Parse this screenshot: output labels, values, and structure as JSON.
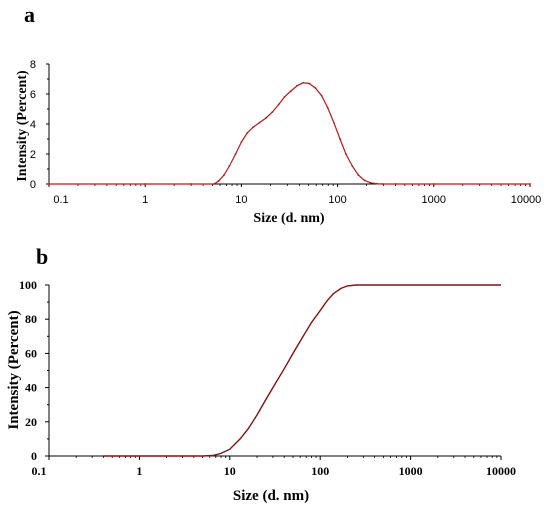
{
  "chart_data": [
    {
      "panel_label": "a",
      "type": "line",
      "xscale": "log",
      "xlim": [
        0.1,
        10000
      ],
      "ylim": [
        0,
        8
      ],
      "xlabel": "Size (d. nm)",
      "ylabel": "Intensity (Percent)",
      "x_ticks": [
        "0.1",
        "1",
        "10",
        "100",
        "1000",
        "10000"
      ],
      "y_ticks": [
        "0",
        "2",
        "4",
        "6",
        "8"
      ],
      "series": [
        {
          "color": "#b01c1c",
          "x": [
            0.1,
            1,
            3,
            5.2,
            5.8,
            6.6,
            7.5,
            8.7,
            10,
            11.5,
            13.3,
            15.5,
            18,
            21,
            24.4,
            28,
            32.7,
            37.8,
            43.8,
            50.7,
            58.8,
            68.1,
            78.8,
            91.3,
            106,
            122,
            142,
            164,
            190,
            220,
            255,
            295,
            400,
            1000,
            10000
          ],
          "y": [
            0,
            0,
            0,
            0,
            0.2,
            0.6,
            1.2,
            2.0,
            2.8,
            3.4,
            3.8,
            4.1,
            4.4,
            4.8,
            5.3,
            5.8,
            6.2,
            6.55,
            6.75,
            6.7,
            6.4,
            5.9,
            5.1,
            4.1,
            3.0,
            2.0,
            1.2,
            0.6,
            0.25,
            0.08,
            0.02,
            0,
            0,
            0,
            0
          ]
        }
      ]
    },
    {
      "panel_label": "b",
      "type": "line",
      "xscale": "log",
      "xlim": [
        0.1,
        10000
      ],
      "ylim": [
        0,
        100
      ],
      "xlabel": "Size (d. nm)",
      "ylabel": "Intensity (Percent)",
      "x_ticks": [
        "0.1",
        "1",
        "10",
        "100",
        "1000",
        "10000"
      ],
      "y_ticks": [
        "0",
        "20",
        "40",
        "60",
        "80",
        "100"
      ],
      "series": [
        {
          "color": "#7a1515",
          "x": [
            0.4,
            1,
            3,
            5,
            6.5,
            8,
            10,
            13,
            16,
            20,
            25,
            30,
            40,
            50,
            60,
            70,
            80,
            100,
            120,
            140,
            170,
            200,
            250,
            500,
            1000,
            2000,
            5000,
            10000
          ],
          "y": [
            0,
            0,
            0,
            0,
            0.3,
            1.5,
            4,
            10,
            16,
            24,
            33,
            40,
            51,
            60,
            67,
            73,
            78,
            85,
            91,
            95,
            98,
            99.5,
            100,
            100,
            100,
            100,
            100,
            100
          ]
        }
      ]
    }
  ]
}
